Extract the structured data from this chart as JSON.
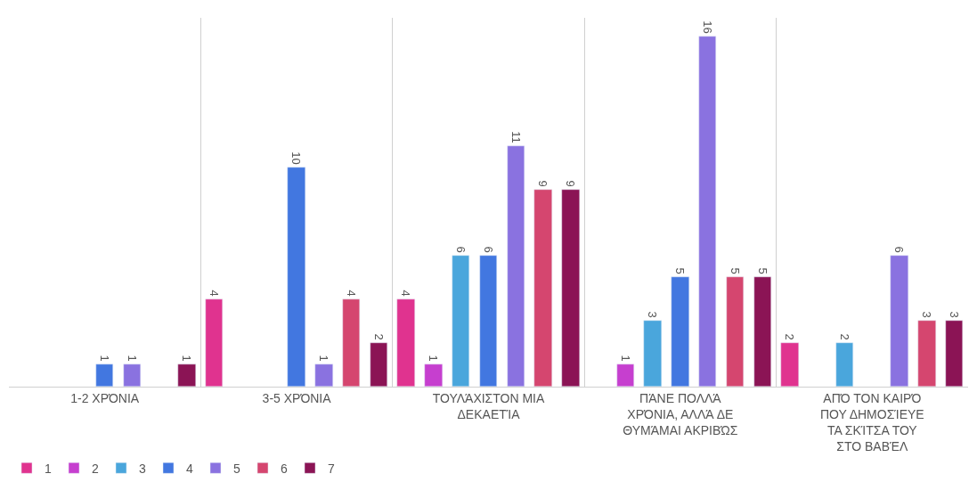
{
  "chart_data": {
    "type": "bar",
    "categories": [
      "1-2 ΧΡΌΝΙΑ",
      "3-5 ΧΡΌΝΙΑ",
      "ΤΟΥΛΆΧΙΣΤΟΝ ΜΙΑ ΔΕΚΑΕΤΊΑ",
      "ΠΆΝΕ ΠΟΛΛΆ ΧΡΌΝΙΑ, ΑΛΛΆ ΔΕ ΘΥΜΆΜΑΙ ΑΚΡΙΒΏΣ",
      "ΑΠΌ ΤΟΝ ΚΑΙΡΌ ΠΟΥ ΔΗΜΟΣΊΕΥΕ ΤΑ ΣΚΊΤΣΑ ΤΟΥ ΣΤΟ ΒΑΒΈΛ"
    ],
    "series": [
      {
        "name": "1",
        "color": "#e0338f",
        "values": [
          null,
          4,
          4,
          null,
          2
        ]
      },
      {
        "name": "2",
        "color": "#c63fcf",
        "values": [
          null,
          null,
          1,
          1,
          null
        ]
      },
      {
        "name": "3",
        "color": "#4aa6dc",
        "values": [
          null,
          null,
          6,
          3,
          2
        ]
      },
      {
        "name": "4",
        "color": "#4277e0",
        "values": [
          1,
          10,
          6,
          5,
          null
        ]
      },
      {
        "name": "5",
        "color": "#8a72e0",
        "values": [
          1,
          1,
          11,
          16,
          6
        ]
      },
      {
        "name": "6",
        "color": "#d5466f",
        "values": [
          null,
          4,
          9,
          5,
          3
        ]
      },
      {
        "name": "7",
        "color": "#8b1455",
        "values": [
          1,
          2,
          9,
          5,
          3
        ]
      }
    ],
    "data_labels": true,
    "grid": "x",
    "legend": "bottom left"
  }
}
